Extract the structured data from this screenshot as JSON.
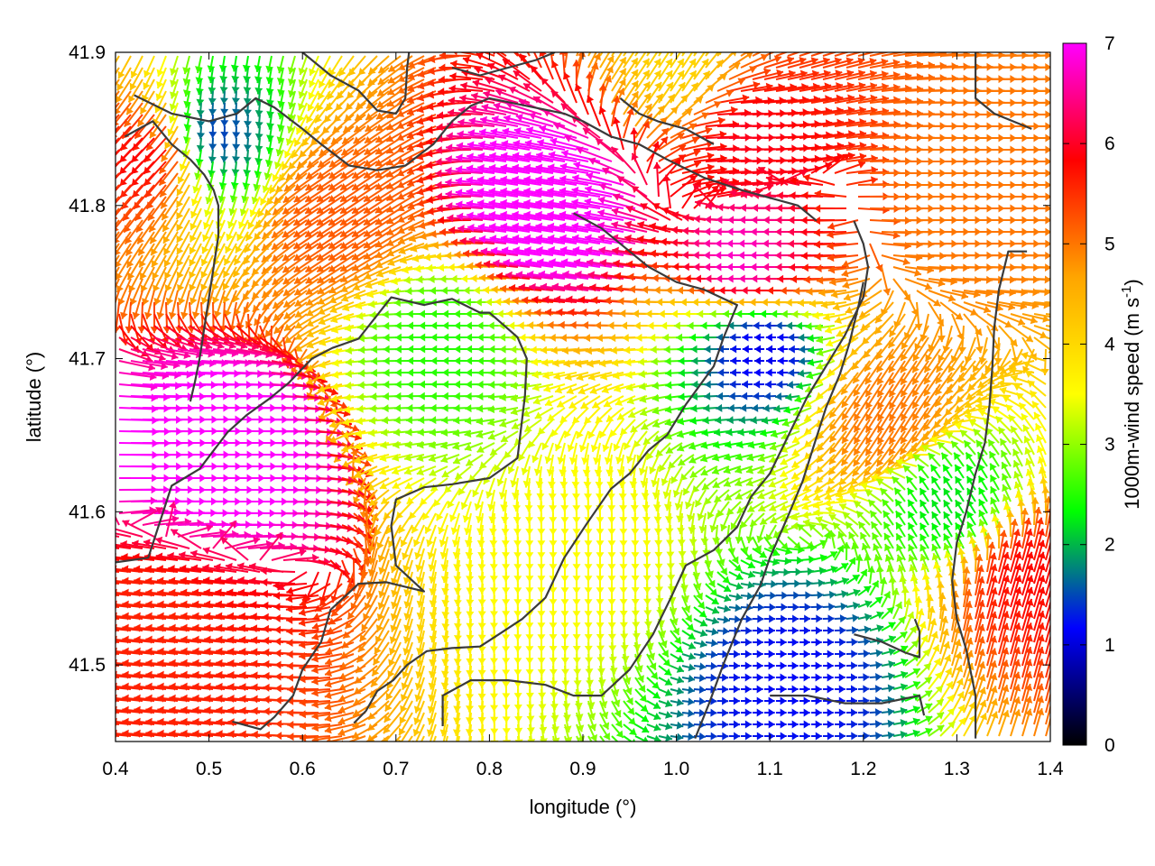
{
  "chart_data": {
    "type": "vector-field",
    "xlabel": "longitude (°)",
    "ylabel": "latitude (°)",
    "xlim": [
      0.4,
      1.4
    ],
    "ylim": [
      41.45,
      41.9
    ],
    "xticks": [
      "0.4",
      "0.5",
      "0.6",
      "0.7",
      "0.8",
      "0.9",
      "1.0",
      "1.1",
      "1.2",
      "1.3",
      "1.4"
    ],
    "yticks": [
      "41.5",
      "41.6",
      "41.7",
      "41.8",
      "41.9"
    ],
    "colorbar": {
      "label_main": "1000m-wind speed (m s",
      "label_sup": "-1",
      "label_end": ")",
      "range": [
        0,
        7
      ],
      "ticks": [
        "0",
        "1",
        "2",
        "3",
        "4",
        "5",
        "6",
        "7"
      ],
      "palette": [
        "#000000",
        "#0000ff",
        "#00ff00",
        "#ffff00",
        "#ffa500",
        "#ff0000",
        "#ff00ff"
      ]
    },
    "wind_centers": [
      {
        "lon": 0.5,
        "lat": 41.64,
        "speed": 7.2,
        "u": 1.0,
        "v": 0.0
      },
      {
        "lon": 0.88,
        "lat": 41.8,
        "speed": 7.5,
        "u": -1.0,
        "v": 0.15
      },
      {
        "lon": 1.1,
        "lat": 41.76,
        "speed": 6.8,
        "u": -1.0,
        "v": 0.0
      },
      {
        "lon": 1.05,
        "lat": 41.85,
        "speed": 6.0,
        "u": 1.0,
        "v": 0.0
      },
      {
        "lon": 0.45,
        "lat": 41.52,
        "speed": 5.6,
        "u": -1.0,
        "v": 0.1
      },
      {
        "lon": 0.65,
        "lat": 41.8,
        "speed": 5.2,
        "u": -0.6,
        "v": -0.4
      },
      {
        "lon": 0.45,
        "lat": 41.84,
        "speed": 6.0,
        "u": -0.7,
        "v": -0.7
      },
      {
        "lon": 1.37,
        "lat": 41.55,
        "speed": 5.8,
        "u": 0.3,
        "v": 1.0
      },
      {
        "lon": 1.23,
        "lat": 41.67,
        "speed": 5.0,
        "u": -0.5,
        "v": -0.8
      },
      {
        "lon": 0.9,
        "lat": 41.58,
        "speed": 3.5,
        "u": 0.0,
        "v": -1.0
      },
      {
        "lon": 1.1,
        "lat": 41.71,
        "speed": 1.0,
        "u": -1.0,
        "v": 0.0
      },
      {
        "lon": 1.12,
        "lat": 41.49,
        "speed": 1.2,
        "u": 1.0,
        "v": 0.0
      },
      {
        "lon": 0.5,
        "lat": 41.85,
        "speed": 1.3,
        "u": 0.0,
        "v": -1.0
      },
      {
        "lon": 1.3,
        "lat": 41.6,
        "speed": 2.2,
        "u": -0.5,
        "v": 0.8
      },
      {
        "lon": 0.76,
        "lat": 41.71,
        "speed": 2.5,
        "u": -0.8,
        "v": 0.0
      },
      {
        "lon": 1.0,
        "lat": 41.88,
        "speed": 4.0,
        "u": 0.5,
        "v": 0.8
      },
      {
        "lon": 1.3,
        "lat": 41.8,
        "speed": 5.0,
        "u": 1.0,
        "v": 0.0
      }
    ],
    "contours": [
      [
        [
          0.4,
          41.567
        ],
        [
          0.435,
          41.57
        ],
        [
          0.46,
          41.617
        ],
        [
          0.49,
          41.628
        ],
        [
          0.52,
          41.652
        ],
        [
          0.54,
          41.663
        ],
        [
          0.565,
          41.674
        ],
        [
          0.585,
          41.684
        ],
        [
          0.61,
          41.7
        ],
        [
          0.632,
          41.707
        ],
        [
          0.66,
          41.713
        ],
        [
          0.695,
          41.74
        ],
        [
          0.73,
          41.735
        ],
        [
          0.76,
          41.739
        ],
        [
          0.79,
          41.73
        ],
        [
          0.8,
          41.73
        ],
        [
          0.83,
          41.714
        ],
        [
          0.84,
          41.7
        ],
        [
          0.838,
          41.676
        ],
        [
          0.83,
          41.635
        ],
        [
          0.8,
          41.622
        ],
        [
          0.76,
          41.618
        ],
        [
          0.73,
          41.616
        ],
        [
          0.7,
          41.608
        ],
        [
          0.695,
          41.591
        ],
        [
          0.7,
          41.565
        ],
        [
          0.73,
          41.548
        ],
        [
          0.69,
          41.554
        ],
        [
          0.66,
          41.553
        ],
        [
          0.63,
          41.536
        ],
        [
          0.62,
          41.515
        ],
        [
          0.6,
          41.497
        ],
        [
          0.59,
          41.48
        ],
        [
          0.57,
          41.466
        ],
        [
          0.555,
          41.458
        ],
        [
          0.525,
          41.463
        ]
      ],
      [
        [
          0.655,
          41.462
        ],
        [
          0.668,
          41.47
        ],
        [
          0.68,
          41.483
        ],
        [
          0.697,
          41.49
        ],
        [
          0.712,
          41.5
        ],
        [
          0.733,
          41.509
        ],
        [
          0.76,
          41.511
        ],
        [
          0.79,
          41.512
        ],
        [
          0.81,
          41.52
        ],
        [
          0.835,
          41.53
        ],
        [
          0.86,
          41.544
        ],
        [
          0.88,
          41.57
        ],
        [
          0.905,
          41.593
        ],
        [
          0.93,
          41.615
        ],
        [
          0.95,
          41.625
        ],
        [
          0.97,
          41.64
        ],
        [
          0.99,
          41.65
        ],
        [
          1.01,
          41.67
        ],
        [
          1.04,
          41.695
        ],
        [
          1.05,
          41.713
        ],
        [
          1.065,
          41.735
        ],
        [
          1.03,
          41.745
        ],
        [
          1.0,
          41.75
        ],
        [
          0.97,
          41.76
        ],
        [
          0.95,
          41.77
        ],
        [
          0.92,
          41.785
        ],
        [
          0.89,
          41.795
        ]
      ],
      [
        [
          0.75,
          41.46
        ],
        [
          0.75,
          41.48
        ],
        [
          0.78,
          41.49
        ],
        [
          0.82,
          41.49
        ],
        [
          0.86,
          41.487
        ],
        [
          0.89,
          41.48
        ],
        [
          0.92,
          41.48
        ],
        [
          0.95,
          41.497
        ],
        [
          0.975,
          41.52
        ],
        [
          0.995,
          41.545
        ],
        [
          1.01,
          41.565
        ],
        [
          1.04,
          41.575
        ],
        [
          1.065,
          41.59
        ],
        [
          1.08,
          41.61
        ],
        [
          1.1,
          41.625
        ],
        [
          1.12,
          41.65
        ],
        [
          1.14,
          41.675
        ],
        [
          1.16,
          41.695
        ],
        [
          1.18,
          41.715
        ],
        [
          1.2,
          41.74
        ],
        [
          1.205,
          41.76
        ],
        [
          1.2,
          41.775
        ],
        [
          1.19,
          41.79
        ]
      ],
      [
        [
          1.02,
          41.452
        ],
        [
          1.035,
          41.475
        ],
        [
          1.05,
          41.5
        ],
        [
          1.07,
          41.53
        ],
        [
          1.09,
          41.552
        ],
        [
          1.1,
          41.57
        ],
        [
          1.12,
          41.598
        ],
        [
          1.135,
          41.62
        ],
        [
          1.148,
          41.645
        ],
        [
          1.16,
          41.668
        ],
        [
          1.175,
          41.69
        ],
        [
          1.185,
          41.71
        ],
        [
          1.195,
          41.735
        ],
        [
          1.2,
          41.75
        ]
      ],
      [
        [
          1.1,
          41.48
        ],
        [
          1.14,
          41.48
        ],
        [
          1.18,
          41.475
        ],
        [
          1.22,
          41.475
        ],
        [
          1.26,
          41.48
        ],
        [
          1.265,
          41.467
        ]
      ],
      [
        [
          1.19,
          41.52
        ],
        [
          1.22,
          41.515
        ],
        [
          1.245,
          41.508
        ],
        [
          1.26,
          41.505
        ],
        [
          1.26,
          41.522
        ],
        [
          1.255,
          41.53
        ]
      ],
      [
        [
          1.32,
          41.452
        ],
        [
          1.32,
          41.48
        ],
        [
          1.31,
          41.51
        ],
        [
          1.3,
          41.53
        ],
        [
          1.295,
          41.555
        ],
        [
          1.3,
          41.58
        ],
        [
          1.31,
          41.6
        ],
        [
          1.32,
          41.625
        ],
        [
          1.33,
          41.645
        ],
        [
          1.335,
          41.67
        ],
        [
          1.338,
          41.695
        ],
        [
          1.34,
          41.72
        ],
        [
          1.345,
          41.745
        ],
        [
          1.355,
          41.77
        ],
        [
          1.375,
          41.77
        ]
      ],
      [
        [
          0.41,
          41.845
        ],
        [
          0.44,
          41.855
        ],
        [
          0.46,
          41.84
        ],
        [
          0.48,
          41.83
        ],
        [
          0.495,
          41.82
        ],
        [
          0.505,
          41.81
        ],
        [
          0.51,
          41.8
        ],
        [
          0.51,
          41.78
        ],
        [
          0.505,
          41.76
        ],
        [
          0.5,
          41.74
        ],
        [
          0.495,
          41.72
        ],
        [
          0.49,
          41.7
        ],
        [
          0.485,
          41.685
        ],
        [
          0.48,
          41.672
        ]
      ],
      [
        [
          0.42,
          41.872
        ],
        [
          0.46,
          41.86
        ],
        [
          0.5,
          41.855
        ],
        [
          0.53,
          41.86
        ],
        [
          0.55,
          41.87
        ],
        [
          0.57,
          41.864
        ],
        [
          0.6,
          41.85
        ],
        [
          0.62,
          41.84
        ],
        [
          0.65,
          41.826
        ],
        [
          0.68,
          41.823
        ],
        [
          0.71,
          41.826
        ],
        [
          0.74,
          41.84
        ],
        [
          0.76,
          41.855
        ],
        [
          0.78,
          41.865
        ],
        [
          0.8,
          41.87
        ],
        [
          0.84,
          41.865
        ],
        [
          0.88,
          41.86
        ],
        [
          0.9,
          41.855
        ],
        [
          0.93,
          41.845
        ],
        [
          0.96,
          41.84
        ],
        [
          0.99,
          41.83
        ],
        [
          1.03,
          41.818
        ],
        [
          1.07,
          41.81
        ],
        [
          1.1,
          41.805
        ],
        [
          1.13,
          41.8
        ],
        [
          1.15,
          41.79
        ]
      ],
      [
        [
          0.6,
          41.9
        ],
        [
          0.63,
          41.885
        ],
        [
          0.66,
          41.875
        ],
        [
          0.68,
          41.862
        ],
        [
          0.7,
          41.86
        ],
        [
          0.71,
          41.87
        ],
        [
          0.712,
          41.89
        ],
        [
          0.714,
          41.9
        ]
      ],
      [
        [
          0.76,
          41.89
        ],
        [
          0.79,
          41.885
        ],
        [
          0.82,
          41.89
        ],
        [
          0.85,
          41.895
        ],
        [
          0.87,
          41.9
        ]
      ],
      [
        [
          0.94,
          41.87
        ],
        [
          0.96,
          41.86
        ],
        [
          0.98,
          41.855
        ],
        [
          1.01,
          41.85
        ],
        [
          1.04,
          41.84
        ]
      ],
      [
        [
          1.32,
          41.9
        ],
        [
          1.32,
          41.87
        ],
        [
          1.34,
          41.86
        ],
        [
          1.38,
          41.85
        ]
      ]
    ]
  }
}
